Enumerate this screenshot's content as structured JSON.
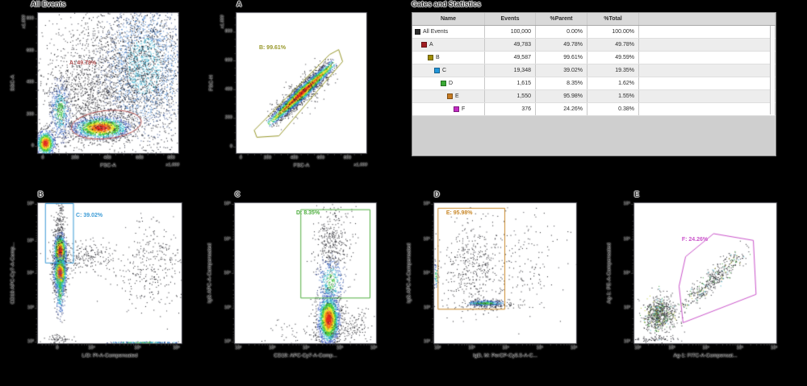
{
  "stats_panel": {
    "title": "Gates and Statistics",
    "columns": [
      "Name",
      "Events",
      "%Parent",
      "%Total",
      ""
    ],
    "rows": [
      {
        "name": "All Events",
        "swatch": "#2f2f2f",
        "depth": 0,
        "events": "100,000",
        "parent": "0.00%",
        "total": "100.00%"
      },
      {
        "name": "A",
        "swatch": "#a11d22",
        "depth": 1,
        "events": "49,783",
        "parent": "49.78%",
        "total": "49.78%"
      },
      {
        "name": "B",
        "swatch": "#9f8d05",
        "depth": 2,
        "events": "49,587",
        "parent": "99.61%",
        "total": "49.59%"
      },
      {
        "name": "C",
        "swatch": "#2196d9",
        "depth": 3,
        "events": "19,348",
        "parent": "39.02%",
        "total": "19.35%"
      },
      {
        "name": "D",
        "swatch": "#3aaa35",
        "depth": 4,
        "events": "1,615",
        "parent": "8.35%",
        "total": "1.62%"
      },
      {
        "name": "E",
        "swatch": "#c77b21",
        "depth": 5,
        "events": "1,550",
        "parent": "95.98%",
        "total": "1.55%"
      },
      {
        "name": "F",
        "swatch": "#c32bc3",
        "depth": 6,
        "events": "376",
        "parent": "24.26%",
        "total": "0.38%"
      }
    ]
  },
  "chart_data": [
    {
      "id": "all-events",
      "type": "scatter",
      "title": "All Events",
      "xlabel": "FSC-A",
      "xunit": "x1,000",
      "ylabel": "SSC-A",
      "yunit": "x1,000",
      "xlog": false,
      "ylog": false,
      "xticks": [
        {
          "t": "0",
          "p": 0.04
        },
        {
          "t": "200",
          "p": 0.27
        },
        {
          "t": "400",
          "p": 0.5
        },
        {
          "t": "600",
          "p": 0.73
        },
        {
          "t": "800",
          "p": 0.955
        }
      ],
      "yticks": [
        {
          "t": "800",
          "p": 0.045
        },
        {
          "t": "600",
          "p": 0.275
        },
        {
          "t": "400",
          "p": 0.5
        },
        {
          "t": "200",
          "p": 0.73
        },
        {
          "t": "0",
          "p": 0.955
        }
      ],
      "gate": {
        "label": "A: 49.78%",
        "color": "#b04b4b",
        "shape": "ellipse",
        "cx": 0.49,
        "cy": 0.8,
        "rx": 0.25,
        "ry": 0.1,
        "rot": -6,
        "label_pos": [
          0.23,
          0.37
        ]
      },
      "clusters": [
        {
          "type": "gauss",
          "cx": 0.055,
          "cy": 0.93,
          "sx": 0.032,
          "sy": 0.042,
          "n": 900,
          "style": "hot"
        },
        {
          "type": "gauss",
          "cx": 0.45,
          "cy": 0.82,
          "sx": 0.095,
          "sy": 0.038,
          "n": 1800,
          "style": "hot"
        },
        {
          "type": "gauss",
          "cx": 0.16,
          "cy": 0.7,
          "sx": 0.038,
          "sy": 0.11,
          "n": 550,
          "style": "cool"
        },
        {
          "type": "gauss",
          "cx": 0.76,
          "cy": 0.38,
          "sx": 0.16,
          "sy": 0.25,
          "n": 2600,
          "style": "cloud"
        },
        {
          "type": "gauss",
          "cx": 0.52,
          "cy": 0.48,
          "sx": 0.27,
          "sy": 0.27,
          "n": 1500,
          "style": "dark"
        },
        {
          "type": "gauss",
          "cx": 0.35,
          "cy": 0.62,
          "sx": 0.18,
          "sy": 0.15,
          "n": 500,
          "style": "dark"
        }
      ]
    },
    {
      "id": "gate-a",
      "type": "scatter",
      "title": "A",
      "xlabel": "FSC-A",
      "xunit": "x1,000",
      "ylabel": "FSC-H",
      "yunit": "x1,000",
      "xlog": false,
      "ylog": false,
      "xticks": [
        {
          "t": "0",
          "p": 0.04
        },
        {
          "t": "200",
          "p": 0.245
        },
        {
          "t": "400",
          "p": 0.45
        },
        {
          "t": "600",
          "p": 0.655
        },
        {
          "t": "800",
          "p": 0.86
        }
      ],
      "yticks": [
        {
          "t": "800",
          "p": 0.14
        },
        {
          "t": "600",
          "p": 0.345
        },
        {
          "t": "400",
          "p": 0.55
        },
        {
          "t": "200",
          "p": 0.755
        },
        {
          "t": "0",
          "p": 0.96
        }
      ],
      "gate": {
        "label": "B: 99.61%",
        "color": "#98982a",
        "shape": "poly",
        "points": [
          [
            0.14,
            0.84
          ],
          [
            0.72,
            0.3
          ],
          [
            0.79,
            0.265
          ],
          [
            0.82,
            0.35
          ],
          [
            0.33,
            0.88
          ],
          [
            0.16,
            0.89
          ]
        ],
        "label_pos": [
          0.18,
          0.26
        ]
      },
      "clusters": [
        {
          "type": "band",
          "x1": 0.24,
          "y1": 0.8,
          "x2": 0.765,
          "y2": 0.345,
          "sigma": 0.022,
          "n": 3400,
          "style": "hot"
        },
        {
          "type": "band",
          "x1": 0.24,
          "y1": 0.8,
          "x2": 0.765,
          "y2": 0.345,
          "sigma": 0.05,
          "n": 320,
          "style": "dark"
        }
      ]
    },
    {
      "id": "gate-b",
      "type": "scatter",
      "title": "B",
      "xlabel": "L/D: PI-A-Compensated",
      "ylabel": "CD19 APC-Cy7-A-Comp...",
      "xlog": true,
      "ylog": true,
      "xticks": [
        {
          "t": "0",
          "p": 0.14
        },
        {
          "t": "10⁴",
          "p": 0.38
        },
        {
          "t": "10⁵",
          "p": 0.7
        },
        {
          "t": "10⁶",
          "p": 0.97
        }
      ],
      "yticks": [
        {
          "t": "10⁶",
          "p": 0.012
        },
        {
          "t": "10⁵",
          "p": 0.275
        },
        {
          "t": "10⁴",
          "p": 0.505
        },
        {
          "t": "10³",
          "p": 0.755
        },
        {
          "t": "10²",
          "p": 0.995
        }
      ],
      "gate": {
        "label": "C: 39.02%",
        "color": "#3b9bd6",
        "shape": "rect",
        "x1": 0.055,
        "y1": 0.006,
        "x2": 0.25,
        "y2": 0.43,
        "label_pos": [
          0.27,
          0.1
        ]
      },
      "clusters": [
        {
          "type": "gauss",
          "cx": 0.155,
          "cy": 0.345,
          "sx": 0.022,
          "sy": 0.062,
          "n": 1100,
          "style": "hot"
        },
        {
          "type": "gauss",
          "cx": 0.155,
          "cy": 0.5,
          "sx": 0.022,
          "sy": 0.062,
          "n": 1200,
          "style": "hot"
        },
        {
          "type": "gauss",
          "cx": 0.155,
          "cy": 0.62,
          "sx": 0.018,
          "sy": 0.1,
          "n": 280,
          "style": "cool"
        },
        {
          "type": "gauss",
          "cx": 0.155,
          "cy": 0.18,
          "sx": 0.02,
          "sy": 0.09,
          "n": 180,
          "style": "dark"
        },
        {
          "type": "gauss",
          "cx": 0.33,
          "cy": 0.385,
          "sx": 0.1,
          "sy": 0.05,
          "n": 220,
          "style": "dark"
        },
        {
          "type": "gauss",
          "cx": 0.8,
          "cy": 0.45,
          "sx": 0.12,
          "sy": 0.16,
          "n": 330,
          "style": "dark"
        },
        {
          "type": "band",
          "x1": 0.45,
          "y1": 0.995,
          "x2": 1.0,
          "y2": 0.995,
          "sigma": 0.003,
          "n": 170,
          "style": "cool"
        },
        {
          "type": "gauss",
          "cx": 0.14,
          "cy": 0.97,
          "sx": 0.05,
          "sy": 0.015,
          "n": 60,
          "style": "dark"
        }
      ]
    },
    {
      "id": "gate-c",
      "type": "scatter",
      "title": "C",
      "xlabel": "CD19: APC-Cy7-A-Comp...",
      "ylabel": "IgG APC-A-Compensated",
      "xlog": true,
      "ylog": true,
      "xticks": [
        {
          "t": "10²",
          "p": 0.03
        },
        {
          "t": "10³",
          "p": 0.27
        },
        {
          "t": "10⁴",
          "p": 0.51
        },
        {
          "t": "10⁵",
          "p": 0.75
        },
        {
          "t": "10⁶",
          "p": 0.99
        }
      ],
      "yticks": [
        {
          "t": "10⁶",
          "p": 0.012
        },
        {
          "t": "10⁵",
          "p": 0.265
        },
        {
          "t": "10⁴",
          "p": 0.505
        },
        {
          "t": "10³",
          "p": 0.755
        },
        {
          "t": "10²",
          "p": 0.995
        }
      ],
      "gate": {
        "label": "D: 8.35%",
        "color": "#4fae3f",
        "shape": "rect",
        "x1": 0.47,
        "y1": 0.05,
        "x2": 0.96,
        "y2": 0.68,
        "label_pos": [
          0.44,
          0.08
        ]
      },
      "clusters": [
        {
          "type": "gauss",
          "cx": 0.665,
          "cy": 0.83,
          "sx": 0.037,
          "sy": 0.085,
          "n": 2300,
          "style": "hot"
        },
        {
          "type": "gauss",
          "cx": 0.68,
          "cy": 0.56,
          "sx": 0.05,
          "sy": 0.09,
          "n": 420,
          "style": "cool"
        },
        {
          "type": "gauss",
          "cx": 0.7,
          "cy": 0.27,
          "sx": 0.07,
          "sy": 0.13,
          "n": 330,
          "style": "dark"
        },
        {
          "type": "gauss",
          "cx": 0.8,
          "cy": 0.88,
          "sx": 0.09,
          "sy": 0.07,
          "n": 160,
          "style": "dark"
        },
        {
          "type": "gauss",
          "cx": 0.55,
          "cy": 0.92,
          "sx": 0.18,
          "sy": 0.05,
          "n": 80,
          "style": "dark"
        }
      ]
    },
    {
      "id": "gate-d",
      "type": "scatter",
      "title": "D",
      "xlabel": "IgD, M: PerCP-Cy5.5-A-C...",
      "ylabel": "IgG APC-A-Compensated",
      "xlog": true,
      "ylog": true,
      "xticks": [
        {
          "t": "10²",
          "p": 0.03
        },
        {
          "t": "10³",
          "p": 0.27
        },
        {
          "t": "10⁴",
          "p": 0.51
        },
        {
          "t": "10⁵",
          "p": 0.75
        },
        {
          "t": "10⁶",
          "p": 0.99
        }
      ],
      "yticks": [
        {
          "t": "10⁶",
          "p": 0.012
        },
        {
          "t": "10⁵",
          "p": 0.265
        },
        {
          "t": "10⁴",
          "p": 0.505
        },
        {
          "t": "10³",
          "p": 0.755
        },
        {
          "t": "10²",
          "p": 0.995
        }
      ],
      "gate": {
        "label": "E: 95.98%",
        "color": "#c9892b",
        "shape": "rect",
        "x1": 0.03,
        "y1": 0.04,
        "x2": 0.5,
        "y2": 0.76,
        "label_pos": [
          0.09,
          0.08
        ]
      },
      "clusters": [
        {
          "type": "band",
          "x1": 0.22,
          "y1": 0.715,
          "x2": 0.5,
          "y2": 0.715,
          "sigma": 0.012,
          "n": 380,
          "style": "cool"
        },
        {
          "type": "gauss",
          "cx": 0.28,
          "cy": 0.44,
          "sx": 0.12,
          "sy": 0.16,
          "n": 430,
          "style": "dark"
        },
        {
          "type": "gauss",
          "cx": 0.015,
          "cy": 0.52,
          "sx": 0.008,
          "sy": 0.05,
          "n": 60,
          "style": "cool"
        },
        {
          "type": "gauss",
          "cx": 0.65,
          "cy": 0.42,
          "sx": 0.14,
          "sy": 0.18,
          "n": 140,
          "style": "dark"
        },
        {
          "type": "gauss",
          "cx": 0.38,
          "cy": 0.73,
          "sx": 0.14,
          "sy": 0.02,
          "n": 120,
          "style": "dark"
        }
      ]
    },
    {
      "id": "gate-e",
      "type": "scatter",
      "title": "E",
      "xlabel": "Ag-1: FITC-A-Compensat...",
      "ylabel": "Ag-1: PE-A-Compensated",
      "xlog": true,
      "ylog": true,
      "xticks": [
        {
          "t": "10²",
          "p": 0.03
        },
        {
          "t": "10³",
          "p": 0.27
        },
        {
          "t": "10⁴",
          "p": 0.51
        },
        {
          "t": "10⁵",
          "p": 0.75
        },
        {
          "t": "10⁶",
          "p": 0.99
        }
      ],
      "yticks": [
        {
          "t": "10⁶",
          "p": 0.012
        },
        {
          "t": "10⁵",
          "p": 0.265
        },
        {
          "t": "10⁴",
          "p": 0.505
        },
        {
          "t": "10³",
          "p": 0.755
        },
        {
          "t": "10²",
          "p": 0.995
        }
      ],
      "gate": {
        "label": "F: 24.26%",
        "color": "#cb54cb",
        "shape": "poly",
        "points": [
          [
            0.364,
            0.385
          ],
          [
            0.561,
            0.221
          ],
          [
            0.841,
            0.269
          ],
          [
            0.86,
            0.654
          ],
          [
            0.346,
            0.856
          ],
          [
            0.318,
            0.596
          ]
        ],
        "label_pos": [
          0.34,
          0.27
        ]
      },
      "clusters": [
        {
          "type": "gauss",
          "cx": 0.18,
          "cy": 0.8,
          "sx": 0.055,
          "sy": 0.062,
          "n": 700,
          "style": "speckle"
        },
        {
          "type": "band",
          "x1": 0.3,
          "y1": 0.78,
          "x2": 0.83,
          "y2": 0.3,
          "sigma": 0.03,
          "n": 430,
          "style": "speckle"
        },
        {
          "type": "gauss",
          "cx": 0.15,
          "cy": 0.97,
          "sx": 0.08,
          "sy": 0.01,
          "n": 60,
          "style": "dark"
        }
      ]
    }
  ]
}
